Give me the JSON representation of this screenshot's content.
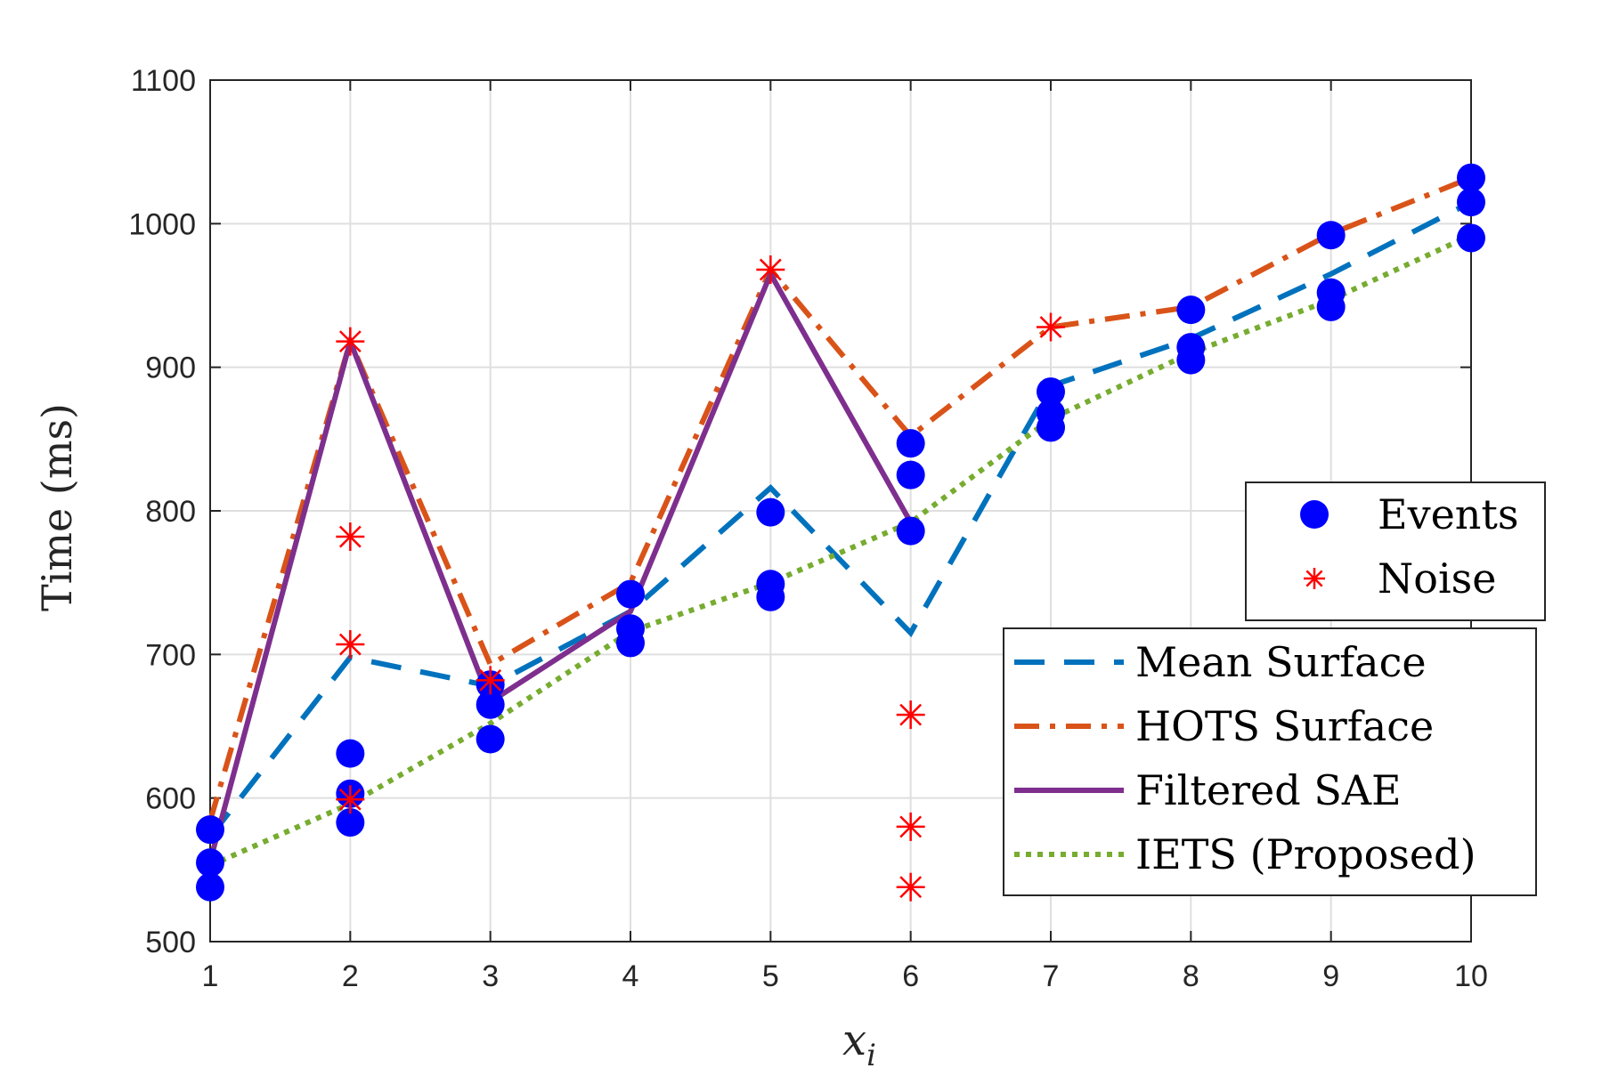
{
  "chart_data": {
    "type": "line",
    "title": "",
    "xlabel": "x",
    "xlabel_subscript": "i",
    "ylabel": "Time (ms)",
    "xlim": [
      1,
      10
    ],
    "ylim": [
      500,
      1100
    ],
    "xticks": [
      1,
      2,
      3,
      4,
      5,
      6,
      7,
      8,
      9,
      10
    ],
    "yticks": [
      500,
      600,
      700,
      800,
      900,
      1000,
      1100
    ],
    "grid": true,
    "series": [
      {
        "name": "Mean Surface",
        "style": "dashed",
        "color": "#0072BD",
        "x": [
          1,
          2,
          3,
          4,
          5,
          6,
          7,
          8,
          9,
          10
        ],
        "y": [
          573,
          698,
          678,
          730,
          816,
          715,
          887,
          920,
          965,
          1015
        ]
      },
      {
        "name": "HOTS Surface",
        "style": "dash-dot",
        "color": "#D95319",
        "x": [
          1,
          2,
          3,
          4,
          5,
          6,
          7,
          8,
          9,
          10
        ],
        "y": [
          584,
          918,
          693,
          750,
          968,
          852,
          928,
          942,
          993,
          1032
        ]
      },
      {
        "name": "Filtered SAE",
        "style": "solid",
        "color": "#7E2F8E",
        "x": [
          1,
          2,
          3,
          4,
          5,
          6
        ],
        "y": [
          556,
          918,
          667,
          730,
          965,
          792
        ]
      },
      {
        "name": "IETS (Proposed)",
        "style": "dotted",
        "color": "#77AC30",
        "x": [
          1,
          2,
          3,
          4,
          5,
          6,
          7,
          8,
          9,
          10
        ],
        "y": [
          553,
          596,
          652,
          716,
          750,
          792,
          864,
          910,
          947,
          992
        ]
      }
    ],
    "scatter": [
      {
        "name": "Events",
        "marker": "filled-circle",
        "color": "#0000FF",
        "points": [
          [
            1,
            578
          ],
          [
            1,
            555
          ],
          [
            1,
            538
          ],
          [
            2,
            631
          ],
          [
            2,
            603
          ],
          [
            2,
            583
          ],
          [
            3,
            679
          ],
          [
            3,
            665
          ],
          [
            3,
            641
          ],
          [
            4,
            742
          ],
          [
            4,
            718
          ],
          [
            4,
            708
          ],
          [
            5,
            799
          ],
          [
            5,
            749
          ],
          [
            5,
            740
          ],
          [
            6,
            847
          ],
          [
            6,
            825
          ],
          [
            6,
            786
          ],
          [
            7,
            883
          ],
          [
            7,
            868
          ],
          [
            7,
            858
          ],
          [
            8,
            940
          ],
          [
            8,
            914
          ],
          [
            8,
            905
          ],
          [
            9,
            992
          ],
          [
            9,
            952
          ],
          [
            9,
            942
          ],
          [
            10,
            1032
          ],
          [
            10,
            1015
          ],
          [
            10,
            990
          ]
        ]
      },
      {
        "name": "Noise",
        "marker": "asterisk",
        "color": "#FF0000",
        "points": [
          [
            2,
            918
          ],
          [
            2,
            782
          ],
          [
            2,
            707
          ],
          [
            2,
            599
          ],
          [
            3,
            682
          ],
          [
            5,
            968
          ],
          [
            6,
            658
          ],
          [
            6,
            580
          ],
          [
            6,
            538
          ],
          [
            7,
            928
          ]
        ]
      }
    ],
    "legend_markers": {
      "position": "right",
      "entries": [
        "Events",
        "Noise"
      ]
    },
    "legend_lines": {
      "position": "bottom-right",
      "entries": [
        "Mean Surface",
        "HOTS Surface",
        "Filtered SAE",
        "IETS (Proposed)"
      ]
    }
  }
}
